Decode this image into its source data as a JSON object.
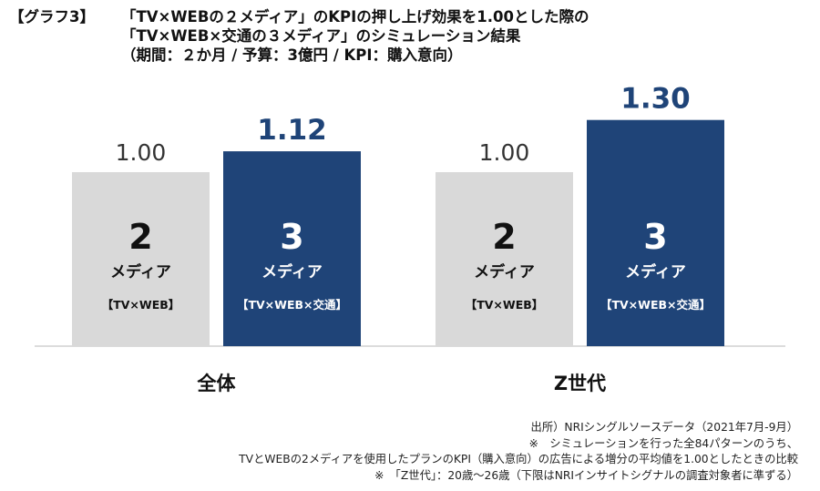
{
  "title": {
    "tag": "【グラフ3】",
    "lines": [
      "「TV×WEBの２メディア」のKPIの押し上げ効果を1.00とした際の",
      "「TV×WEB×交通の３メディア」のシミュレーション結果",
      "（期間：２か月 / 予算：3億円 / KPI：購入意向）"
    ]
  },
  "chart_data": {
    "type": "bar",
    "categories": [
      "全体",
      "Z世代"
    ],
    "series": [
      {
        "number": "2",
        "media": "メディア",
        "combo": "【TV×WEB】",
        "values": [
          1.0,
          1.0
        ],
        "labels": [
          "1.00",
          "1.00"
        ],
        "color": "#d9d9d9"
      },
      {
        "number": "3",
        "media": "メディア",
        "combo": "【TV×WEB×交通】",
        "values": [
          1.12,
          1.3
        ],
        "labels": [
          "1.12",
          "1.30"
        ],
        "color": "#1f4478"
      }
    ],
    "colors": {
      "label_default": "#333333",
      "label_highlight": "#1f4478",
      "axis": "#d0d0d0"
    }
  },
  "footnotes": [
    "出所）NRIシングルソースデータ（2021年7月-9月）",
    "※　シミュレーションを行った全84パターンのうち、",
    "TVとWEBの2メディアを使用したプランのKPI（購入意向）の広告による増分の平均値を1.00としたときの比較",
    "※　「Z世代」：20歳〜26歳（下限はNRIインサイトシグナルの調査対象者に準ずる）"
  ]
}
